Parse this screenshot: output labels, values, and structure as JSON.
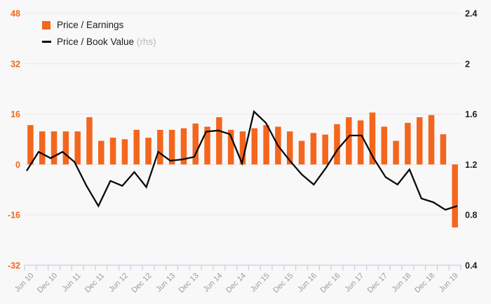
{
  "legend": {
    "bar_label": "Price / Earnings",
    "line_label": "Price / Book Value",
    "line_label_suffix": "(rhs)"
  },
  "colors": {
    "bar": "#f4661d",
    "line": "#0b0b0b",
    "left_axis_text": "#f4661d",
    "right_axis_text": "#1f1f1f",
    "x_axis_text": "#9b9b9b",
    "gridline": "#e7e7e7",
    "axis_line": "#c9cde6",
    "background": "#f8f8f8"
  },
  "chart_data": {
    "type": "combo",
    "categories": [
      "Jun 10",
      "Sep 10",
      "Dec 10",
      "Mar 11",
      "Jun 11",
      "Sep 11",
      "Dec 11",
      "Mar 12",
      "Jun 12",
      "Sep 12",
      "Dec 12",
      "Mar 13",
      "Jun 13",
      "Sep 13",
      "Dec 13",
      "Mar 14",
      "Jun 14",
      "Sep 14",
      "Dec 14",
      "Mar 15",
      "Jun 15",
      "Sep 15",
      "Dec 15",
      "Mar 16",
      "Jun 16",
      "Sep 16",
      "Dec 16",
      "Mar 17",
      "Jun 17",
      "Sep 17",
      "Dec 17",
      "Mar 18",
      "Jun 18",
      "Sep 18",
      "Dec 18",
      "Mar 19",
      "Jun 19"
    ],
    "x_tick_labels_shown": [
      "Jun 10",
      "Dec 10",
      "Jun 11",
      "Dec 11",
      "Jun 12",
      "Dec 12",
      "Jun 13",
      "Dec 13",
      "Jun 14",
      "Dec 14",
      "Jun 15",
      "Dec 15",
      "Jun 16",
      "Dec 16",
      "Jun 17",
      "Dec 17",
      "Jun 18",
      "Dec 18",
      "Jun 19"
    ],
    "series": [
      {
        "name": "Price / Earnings",
        "type": "bar",
        "axis": "left",
        "values": [
          12.5,
          10.5,
          10.5,
          10.5,
          10.5,
          15,
          7.5,
          8.5,
          8,
          11,
          8.5,
          11,
          11,
          11.5,
          13,
          12,
          15,
          11,
          10.5,
          11.5,
          12.5,
          12,
          10.5,
          7.5,
          10,
          9.5,
          12.8,
          15,
          14,
          16.5,
          12,
          7.5,
          13.2,
          15,
          15.7,
          9.6,
          -20
        ]
      },
      {
        "name": "Price / Book Value (rhs)",
        "type": "line",
        "axis": "right",
        "values": [
          1.15,
          1.3,
          1.25,
          1.3,
          1.22,
          1.03,
          0.87,
          1.07,
          1.03,
          1.14,
          1.02,
          1.3,
          1.23,
          1.24,
          1.26,
          1.46,
          1.47,
          1.44,
          1.21,
          1.62,
          1.53,
          1.35,
          1.23,
          1.12,
          1.04,
          1.17,
          1.32,
          1.43,
          1.43,
          1.25,
          1.1,
          1.04,
          1.16,
          0.93,
          0.9,
          0.84,
          0.87
        ]
      }
    ],
    "left_axis": {
      "tick_labels": [
        "48",
        "32",
        "16",
        "0",
        "-16",
        "-32"
      ],
      "ticks": [
        48,
        32,
        16,
        0,
        -16,
        -32
      ],
      "range": [
        -32,
        48
      ]
    },
    "right_axis": {
      "tick_labels": [
        "2.4",
        "2",
        "1.6",
        "1.2",
        "0.8",
        "0.4"
      ],
      "ticks": [
        2.4,
        2,
        1.6,
        1.2,
        0.8,
        0.4
      ],
      "range": [
        0.4,
        2.4
      ]
    },
    "title": "",
    "xlabel": "",
    "ylabel": "",
    "grid": true,
    "legend_position": "top-left"
  }
}
